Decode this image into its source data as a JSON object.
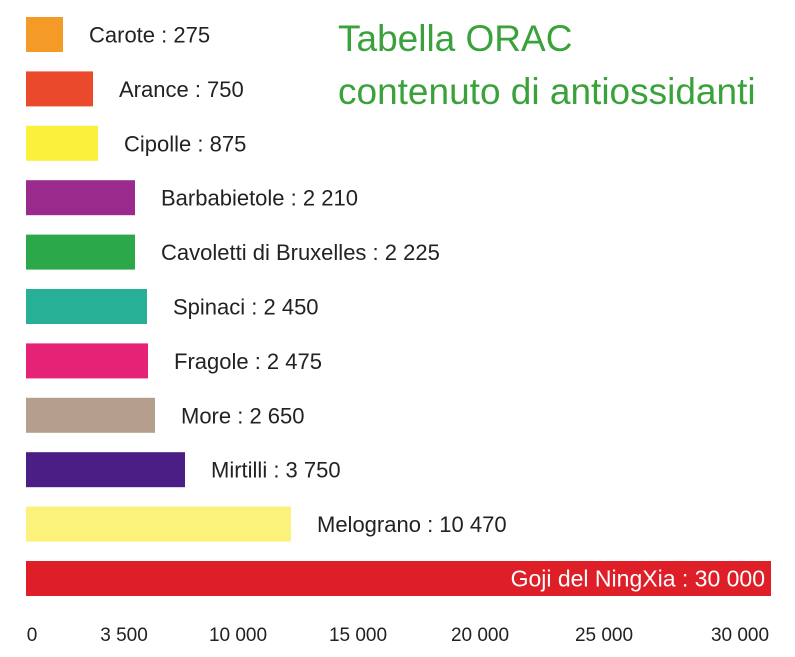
{
  "chart_data": {
    "type": "bar",
    "orientation": "horizontal",
    "title_lines": [
      "Tabella ORAC",
      "contenuto di antiossidanti"
    ],
    "title_color": "#3aa23a",
    "categories": [
      "Carote",
      "Arance",
      "Cipolle",
      "Barbabietole",
      "Cavoletti di Bruxelles",
      "Spinaci",
      "Fragole",
      "More",
      "Mirtilli",
      "Melograno",
      "Goji del NingXia"
    ],
    "values": [
      275,
      750,
      875,
      2210,
      2225,
      2450,
      2475,
      2650,
      3750,
      10470,
      30000
    ],
    "labels": [
      "Carote : 275",
      "Arance : 750",
      "Cipolle : 875",
      "Barbabietole : 2 210",
      "Cavoletti di Bruxelles : 2 225",
      "Spinaci : 2 450",
      "Fragole : 2 475",
      "More : 2 650",
      "Mirtilli : 3 750",
      "Melograno : 10 470",
      "Goji del NingXia : 30 000"
    ],
    "colors": [
      "#f39a27",
      "#ea4a2b",
      "#fbf03a",
      "#9a2a8c",
      "#2aa84a",
      "#27b096",
      "#e62277",
      "#b39f8b",
      "#4b1e85",
      "#fbf27b",
      "#de1f27"
    ],
    "x_ticks": [
      "0",
      "3 500",
      "10 000",
      "15 000",
      "20 000",
      "25 000",
      "30 000"
    ],
    "xlim": [
      0,
      30000
    ],
    "grid": false,
    "legend": "none"
  }
}
